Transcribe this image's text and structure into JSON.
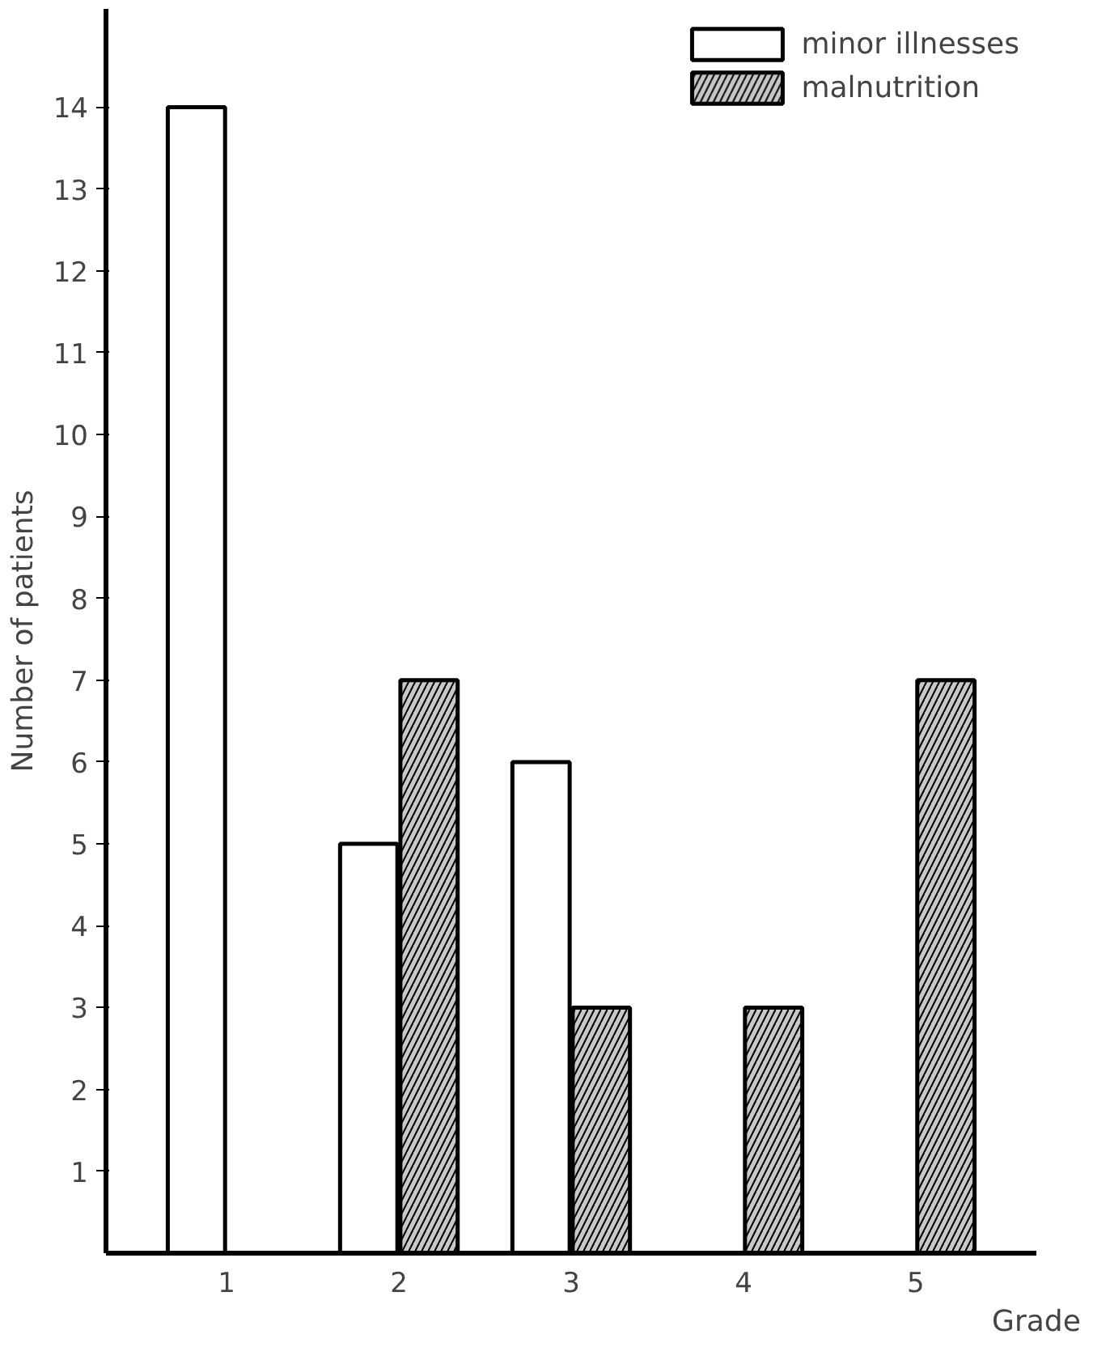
{
  "chart_data": {
    "type": "bar",
    "xlabel": "Grade",
    "ylabel": "Number of patients",
    "categories": [
      "1",
      "2",
      "3",
      "4",
      "5"
    ],
    "series": [
      {
        "name": "minor illnesses",
        "color": "#ffffff",
        "values": [
          14,
          5,
          6,
          null,
          null
        ]
      },
      {
        "name": "malnutrition",
        "color": "#c8c8c8",
        "values": [
          null,
          7,
          3,
          3,
          7
        ]
      }
    ],
    "ylim": [
      0,
      15.2
    ],
    "yticks": [
      1,
      2,
      3,
      4,
      5,
      6,
      7,
      8,
      9,
      10,
      11,
      12,
      13,
      14
    ],
    "grid": false,
    "legend": "top right"
  }
}
